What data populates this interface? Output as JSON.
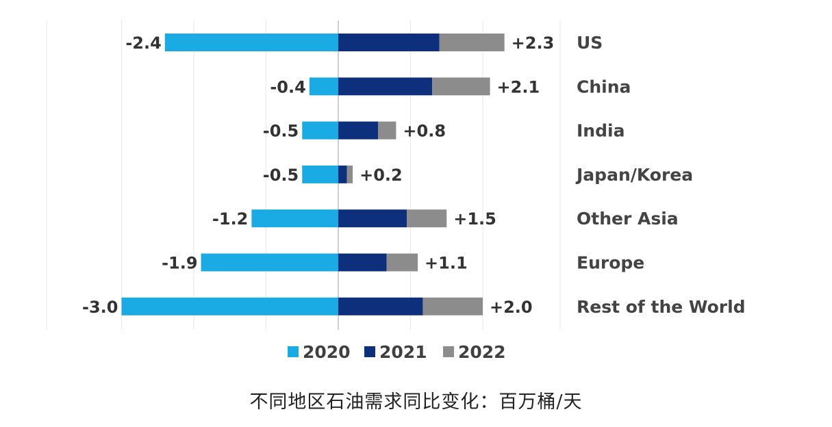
{
  "chart_data": {
    "type": "bar",
    "orientation": "horizontal",
    "stacked": true,
    "categories": [
      "US",
      "China",
      "India",
      "Japan/Korea",
      "Other Asia",
      "Europe",
      "Rest of the World"
    ],
    "series": [
      {
        "name": "2020",
        "values": [
          -2.4,
          -0.4,
          -0.5,
          -0.5,
          -1.2,
          -1.9,
          -3.0
        ]
      },
      {
        "name": "2021",
        "values": [
          1.4,
          1.3,
          0.55,
          0.12,
          0.95,
          0.67,
          1.17
        ]
      },
      {
        "name": "2022",
        "values": [
          0.9,
          0.8,
          0.25,
          0.08,
          0.55,
          0.43,
          0.83
        ]
      }
    ],
    "negative_labels": [
      "-2.4",
      "-0.4",
      "-0.5",
      "-0.5",
      "-1.2",
      "-1.9",
      "-3.0"
    ],
    "positive_labels": [
      "+2.3",
      "+2.1",
      "+0.8",
      "+0.2",
      "+1.5",
      "+1.1",
      "+2.0"
    ],
    "xlim": [
      -3.0,
      3.0
    ],
    "grid": "vertical",
    "legend_position": "bottom",
    "colors": {
      "2020": "#1aaae4",
      "2021": "#0d2f7c",
      "2022": "#8c8c8c",
      "grid": "#e6e6e6",
      "axis": "#bfbfbf"
    }
  },
  "caption": "不同地区石油需求同比变化：百万桶/天"
}
